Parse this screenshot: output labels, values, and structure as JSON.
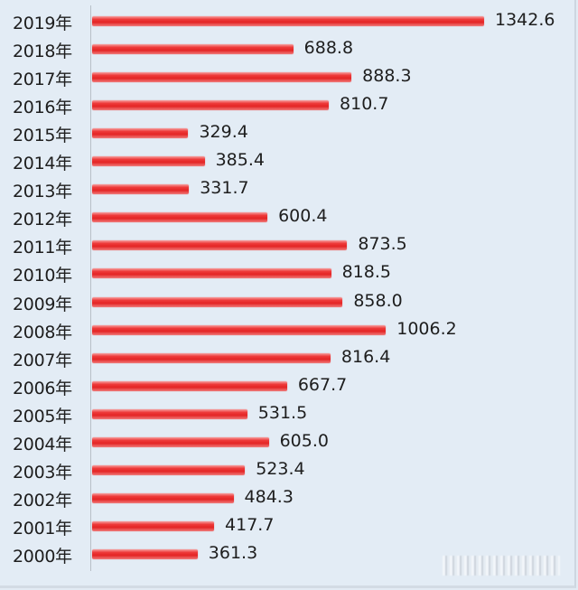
{
  "chart_data": {
    "type": "bar",
    "orientation": "horizontal",
    "title": "",
    "xlabel": "",
    "ylabel": "",
    "categories": [
      "2019年",
      "2018年",
      "2017年",
      "2016年",
      "2015年",
      "2014年",
      "2013年",
      "2012年",
      "2011年",
      "2010年",
      "2009年",
      "2008年",
      "2007年",
      "2006年",
      "2005年",
      "2004年",
      "2003年",
      "2002年",
      "2001年",
      "2000年"
    ],
    "values": [
      1342.6,
      688.8,
      888.3,
      810.7,
      329.4,
      385.4,
      331.7,
      600.4,
      873.5,
      818.5,
      858.0,
      1006.2,
      816.4,
      667.7,
      531.5,
      605.0,
      523.4,
      484.3,
      417.7,
      361.3
    ],
    "value_labels": [
      "1342.6",
      "688.8",
      "888.3",
      "810.7",
      "329.4",
      "385.4",
      "331.7",
      "600.4",
      "873.5",
      "818.5",
      "858.0",
      "1006.2",
      "816.4",
      "667.7",
      "531.5",
      "605.0",
      "523.4",
      "484.3",
      "417.7",
      "361.3"
    ],
    "xlim": [
      0,
      1342.6
    ],
    "grid": false,
    "legend": null,
    "bar_color": "#e8302f",
    "background_color": "#e3ecf5"
  }
}
